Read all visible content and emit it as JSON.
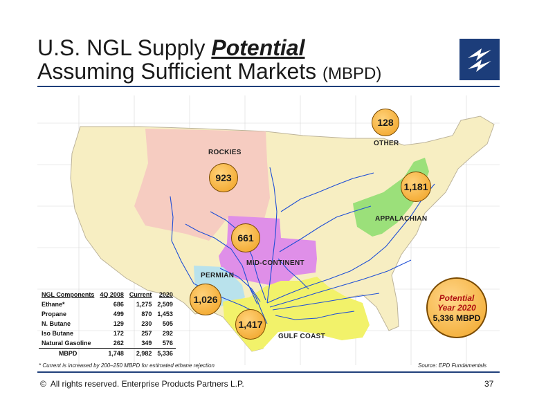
{
  "title": {
    "line1_prefix": "U.S. NGL Supply ",
    "line1_emphasis": "Potential",
    "line2_main": "Assuming Sufficient Markets",
    "line2_unit": "(MBPD)"
  },
  "regions": [
    {
      "name": "ROCKIES",
      "value": "923"
    },
    {
      "name": "OTHER",
      "value": "128"
    },
    {
      "name": "APPALACHIAN",
      "value": "1,181"
    },
    {
      "name": "MID-CONTINENT",
      "value": "661"
    },
    {
      "name": "PERMIAN",
      "value": "1,026"
    },
    {
      "name": "GULF COAST",
      "value": "1,417"
    }
  ],
  "potential": {
    "line1": "Potential",
    "line2": "Year 2020",
    "line3": "5,336 MBPD"
  },
  "table": {
    "headers": [
      "NGL Components",
      "4Q 2008",
      "Current",
      "2020"
    ],
    "rows": [
      [
        "Ethane*",
        "686",
        "1,275",
        "2,509"
      ],
      [
        "Propane",
        "499",
        "870",
        "1,453"
      ],
      [
        "N. Butane",
        "129",
        "230",
        "505"
      ],
      [
        "Iso Butane",
        "172",
        "257",
        "292"
      ],
      [
        "Natural Gasoline",
        "262",
        "349",
        "576"
      ]
    ],
    "total": [
      "MBPD",
      "1,748",
      "2,982",
      "5,336"
    ]
  },
  "footnote": "* Current is increased by 200–250 MBPD for estimated ethane rejection",
  "source": "Source:  EPD Fundamentals",
  "footer": {
    "copyright_symbol": "©",
    "text": "All rights reserved. Enterprise Products Partners L.P.",
    "page": "37"
  },
  "colors": {
    "rockies": "#f5c9c1",
    "appalachian": "#9be07a",
    "mid_continent": "#df8fe8",
    "permian": "#b9e2ec",
    "gulf_coast": "#f2f26a",
    "land": "#f7eec2",
    "rule": "#1f3f7a",
    "pipeline": "#1f4fd6"
  },
  "icons": {
    "logo": "enterprise-logo-icon"
  }
}
